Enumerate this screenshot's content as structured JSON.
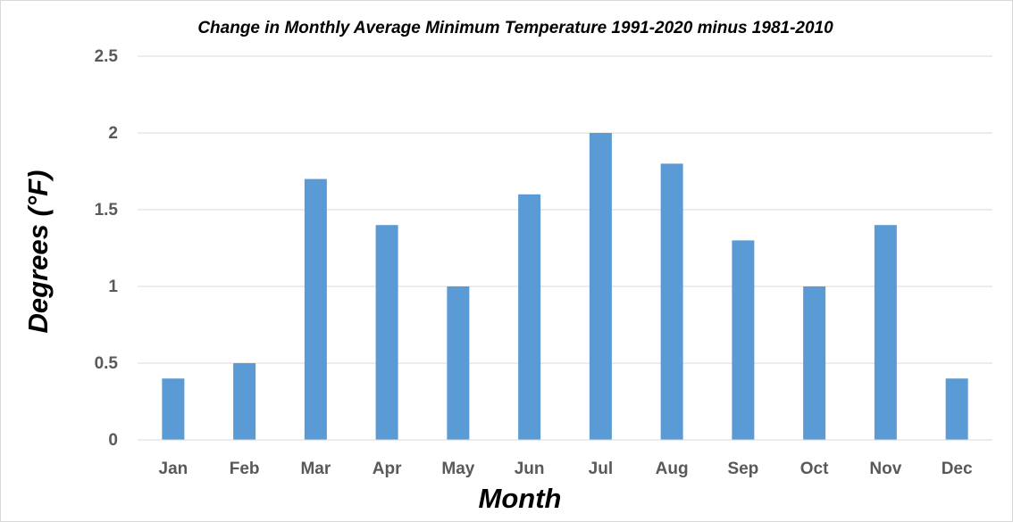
{
  "chart_data": {
    "type": "bar",
    "title": "Change in Monthly Average Minimum Temperature 1991-2020 minus 1981-2010",
    "xlabel": "Month",
    "ylabel": "Degrees (°F)",
    "categories": [
      "Jan",
      "Feb",
      "Mar",
      "Apr",
      "May",
      "Jun",
      "Jul",
      "Aug",
      "Sep",
      "Oct",
      "Nov",
      "Dec"
    ],
    "values": [
      0.4,
      0.5,
      1.7,
      1.4,
      1.0,
      1.6,
      2.0,
      1.8,
      1.3,
      1.0,
      1.4,
      0.4
    ],
    "ylim": [
      0,
      2.5
    ],
    "yticks": [
      "0",
      "0.5",
      "1",
      "1.5",
      "2",
      "2.5"
    ],
    "grid": true,
    "legend": "none",
    "colors": {
      "bar": "#5b9bd5"
    }
  }
}
